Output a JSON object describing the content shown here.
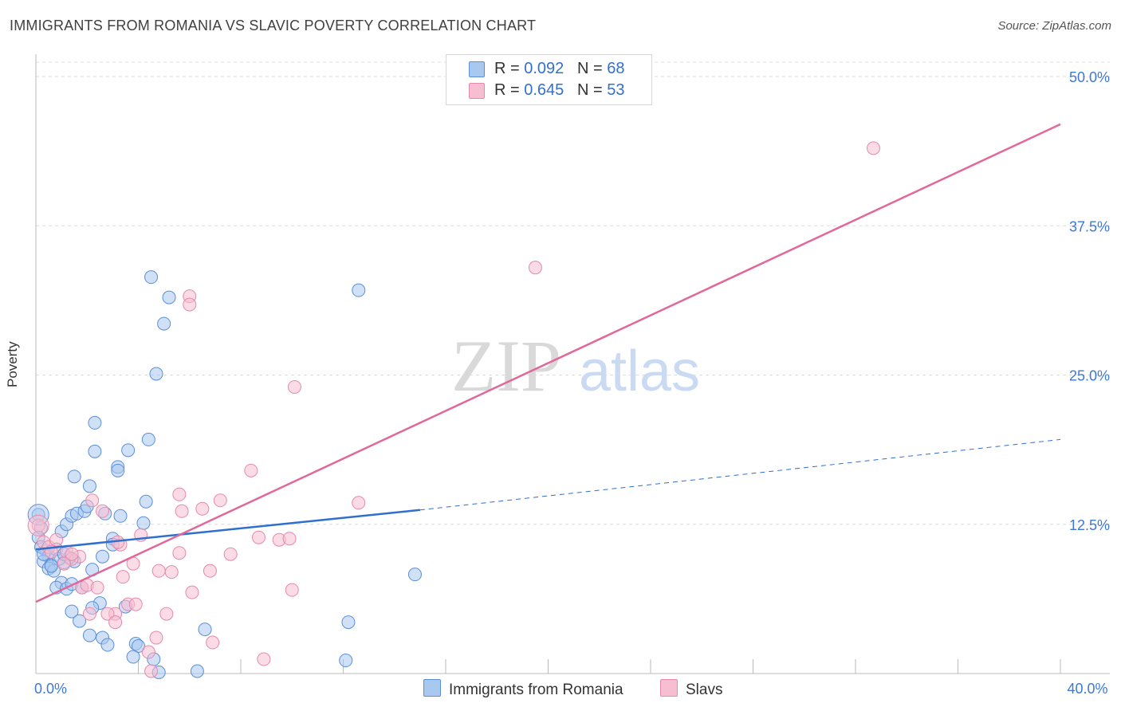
{
  "header": {
    "title": "IMMIGRANTS FROM ROMANIA VS SLAVIC POVERTY CORRELATION CHART",
    "source": "Source: ZipAtlas.com"
  },
  "watermark": {
    "zip": "ZIP",
    "atlas": "atlas"
  },
  "legend": {
    "series": [
      {
        "r_label": "R = ",
        "r_value": "0.092",
        "n_label": "N = ",
        "n_value": "68"
      },
      {
        "r_label": "R = ",
        "r_value": "0.645",
        "n_label": "N = ",
        "n_value": "53"
      }
    ]
  },
  "colors": {
    "romania_fill": "#a9c8f0",
    "romania_stroke": "#5a8fd8",
    "romania_line": "#2f6fcf",
    "slavs_fill": "#f7bdd0",
    "slavs_stroke": "#e58aaa",
    "slavs_line": "#e0689a",
    "tick_label": "#3d78d6",
    "grid": "#dcdcdc"
  },
  "chart_data": {
    "type": "scatter",
    "title": "IMMIGRANTS FROM ROMANIA VS SLAVIC POVERTY CORRELATION CHART",
    "xlabel": "",
    "ylabel": "Poverty",
    "xlim": [
      0,
      40
    ],
    "ylim": [
      0,
      50
    ],
    "x_tick_labels": [
      {
        "value": 0,
        "label": "0.0%"
      },
      {
        "value": 40,
        "label": "40.0%"
      }
    ],
    "y_tick_labels": [
      {
        "value": 12.5,
        "label": "12.5%"
      },
      {
        "value": 25,
        "label": "25.0%"
      },
      {
        "value": 37.5,
        "label": "37.5%"
      },
      {
        "value": 50,
        "label": "50.0%"
      }
    ],
    "grid": true,
    "legend_position": "top-center",
    "series": [
      {
        "name": "Immigrants from Romania",
        "color": "#5a8fd8",
        "trend": {
          "x0": 0,
          "y0": 10.4,
          "x1": 15,
          "y1": 13.7,
          "dashed_to_x": 40,
          "dashed_to_y": 19.6
        },
        "points": [
          [
            0.1,
            13.3
          ],
          [
            0.2,
            12.2
          ],
          [
            0.1,
            11.4
          ],
          [
            0.2,
            10.6
          ],
          [
            0.4,
            10.3
          ],
          [
            0.5,
            9.8
          ],
          [
            0.3,
            9.4
          ],
          [
            0.6,
            9.1
          ],
          [
            0.5,
            8.8
          ],
          [
            0.7,
            8.6
          ],
          [
            0.8,
            10.4
          ],
          [
            1.0,
            11.9
          ],
          [
            1.2,
            12.5
          ],
          [
            1.4,
            13.2
          ],
          [
            1.6,
            13.4
          ],
          [
            1.5,
            9.4
          ],
          [
            1.3,
            9.7
          ],
          [
            1.1,
            9.3
          ],
          [
            0.9,
            9.6
          ],
          [
            1.0,
            7.6
          ],
          [
            0.8,
            7.2
          ],
          [
            1.2,
            7.1
          ],
          [
            1.4,
            7.5
          ],
          [
            1.8,
            7.2
          ],
          [
            2.2,
            8.7
          ],
          [
            2.6,
            9.8
          ],
          [
            1.9,
            13.6
          ],
          [
            2.0,
            14.0
          ],
          [
            2.7,
            13.4
          ],
          [
            3.3,
            13.2
          ],
          [
            3.0,
            11.3
          ],
          [
            3.0,
            10.8
          ],
          [
            1.5,
            16.5
          ],
          [
            2.1,
            15.7
          ],
          [
            2.3,
            18.6
          ],
          [
            2.3,
            21.0
          ],
          [
            3.2,
            17.3
          ],
          [
            3.2,
            17.0
          ],
          [
            3.6,
            18.7
          ],
          [
            4.4,
            19.6
          ],
          [
            4.3,
            14.4
          ],
          [
            4.2,
            12.6
          ],
          [
            2.5,
            5.9
          ],
          [
            2.2,
            5.5
          ],
          [
            1.4,
            5.2
          ],
          [
            1.7,
            4.4
          ],
          [
            3.5,
            5.6
          ],
          [
            2.1,
            3.2
          ],
          [
            2.6,
            3.0
          ],
          [
            2.8,
            2.4
          ],
          [
            3.9,
            2.5
          ],
          [
            4.0,
            2.3
          ],
          [
            3.8,
            1.4
          ],
          [
            4.6,
            1.2
          ],
          [
            4.8,
            0.1
          ],
          [
            6.3,
            0.2
          ],
          [
            4.5,
            33.2
          ],
          [
            5.2,
            31.5
          ],
          [
            5.0,
            29.3
          ],
          [
            4.7,
            25.1
          ],
          [
            12.6,
            32.1
          ],
          [
            12.2,
            4.3
          ],
          [
            12.1,
            1.1
          ],
          [
            6.6,
            3.7
          ],
          [
            14.8,
            8.3
          ],
          [
            0.6,
            9.0
          ],
          [
            1.1,
            10.0
          ],
          [
            0.3,
            10.0
          ]
        ]
      },
      {
        "name": "Slavs",
        "color": "#e58aaa",
        "trend": {
          "x0": 0,
          "y0": 6.0,
          "x1": 40,
          "y1": 46.0
        },
        "points": [
          [
            0.1,
            12.4
          ],
          [
            0.3,
            11.0
          ],
          [
            0.5,
            10.6
          ],
          [
            0.8,
            11.2
          ],
          [
            1.2,
            10.2
          ],
          [
            1.7,
            9.8
          ],
          [
            1.4,
            9.6
          ],
          [
            1.1,
            9.2
          ],
          [
            1.8,
            7.2
          ],
          [
            2.0,
            7.4
          ],
          [
            2.2,
            14.5
          ],
          [
            2.6,
            13.6
          ],
          [
            3.3,
            10.8
          ],
          [
            3.2,
            11.0
          ],
          [
            3.4,
            8.1
          ],
          [
            3.8,
            9.2
          ],
          [
            4.1,
            11.6
          ],
          [
            4.8,
            8.6
          ],
          [
            5.3,
            8.5
          ],
          [
            5.6,
            10.1
          ],
          [
            5.7,
            13.6
          ],
          [
            5.6,
            15.0
          ],
          [
            6.5,
            13.8
          ],
          [
            7.2,
            14.5
          ],
          [
            7.6,
            10.0
          ],
          [
            8.4,
            17.0
          ],
          [
            8.7,
            11.4
          ],
          [
            9.5,
            11.2
          ],
          [
            10.0,
            7.0
          ],
          [
            9.9,
            11.3
          ],
          [
            6.1,
            6.8
          ],
          [
            6.8,
            8.6
          ],
          [
            3.6,
            5.8
          ],
          [
            3.1,
            5.0
          ],
          [
            2.8,
            5.0
          ],
          [
            3.1,
            4.3
          ],
          [
            5.1,
            5.0
          ],
          [
            4.7,
            3.0
          ],
          [
            4.4,
            1.8
          ],
          [
            4.5,
            0.2
          ],
          [
            6.9,
            2.6
          ],
          [
            8.9,
            1.2
          ],
          [
            12.6,
            14.3
          ],
          [
            6.0,
            31.6
          ],
          [
            6.0,
            30.9
          ],
          [
            10.1,
            24.0
          ],
          [
            19.5,
            34.0
          ],
          [
            32.7,
            44.0
          ],
          [
            1.4,
            10.0
          ],
          [
            2.4,
            7.2
          ],
          [
            3.9,
            5.8
          ],
          [
            2.1,
            5.0
          ],
          [
            0.6,
            10.2
          ]
        ]
      }
    ]
  },
  "bottom_legend": {
    "items": [
      {
        "label": "Immigrants from Romania"
      },
      {
        "label": "Slavs"
      }
    ]
  }
}
